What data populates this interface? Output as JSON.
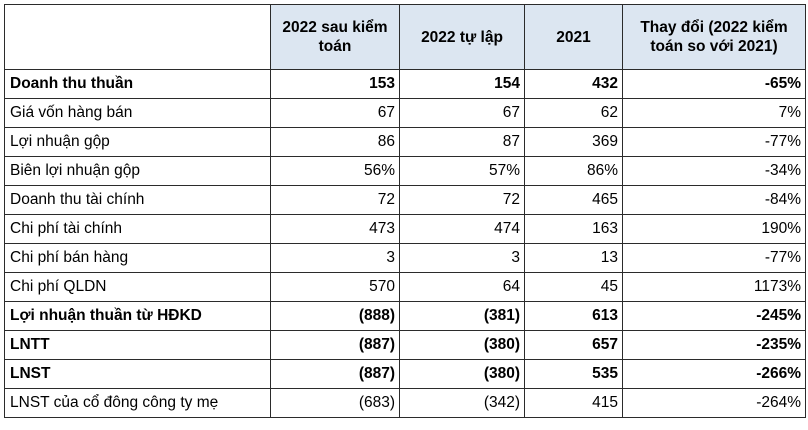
{
  "table": {
    "headers": [
      "",
      "2022 sau kiểm toán",
      "2022 tự lập",
      "2021",
      "Thay đổi (2022 kiểm toán so với 2021)"
    ],
    "rows": [
      {
        "label": "Doanh thu thuần",
        "values": [
          "153",
          "154",
          "432",
          "-65%"
        ],
        "bold": true
      },
      {
        "label": "Giá vốn hàng bán",
        "values": [
          "67",
          "67",
          "62",
          "7%"
        ],
        "bold": false
      },
      {
        "label": "Lợi nhuận gộp",
        "values": [
          "86",
          "87",
          "369",
          "-77%"
        ],
        "bold": false
      },
      {
        "label": "Biên lợi nhuận gộp",
        "values": [
          "56%",
          "57%",
          "86%",
          "-34%"
        ],
        "bold": false
      },
      {
        "label": "Doanh thu tài chính",
        "values": [
          "72",
          "72",
          "465",
          "-84%"
        ],
        "bold": false
      },
      {
        "label": "Chi phí tài chính",
        "values": [
          "473",
          "474",
          "163",
          "190%"
        ],
        "bold": false
      },
      {
        "label": "Chi phí bán hàng",
        "values": [
          "3",
          "3",
          "13",
          "-77%"
        ],
        "bold": false
      },
      {
        "label": "Chi phí QLDN",
        "values": [
          "570",
          "64",
          "45",
          "1173%"
        ],
        "bold": false
      },
      {
        "label": "Lợi nhuận thuần từ HĐKD",
        "values": [
          "(888)",
          "(381)",
          "613",
          "-245%"
        ],
        "bold": true
      },
      {
        "label": "LNTT",
        "values": [
          "(887)",
          "(380)",
          "657",
          "-235%"
        ],
        "bold": true
      },
      {
        "label": "LNST",
        "values": [
          "(887)",
          "(380)",
          "535",
          "-266%"
        ],
        "bold": true
      },
      {
        "label": "LNST của cổ đông công ty mẹ",
        "values": [
          "(683)",
          "(342)",
          "415",
          "-264%"
        ],
        "bold": false
      }
    ]
  }
}
